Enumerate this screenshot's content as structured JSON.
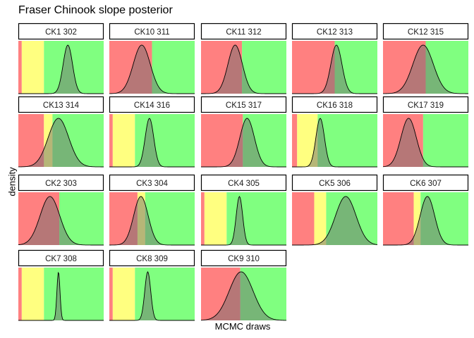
{
  "chart_data": {
    "type": "area",
    "title": "Fraser Chinook slope posterior",
    "xlabel": "MCMC draws",
    "ylabel": "density",
    "axis_ticks": "none",
    "colors": {
      "red": "#ff8080",
      "yellow": "#ffff80",
      "green": "#80ff80",
      "density_fill": "#6e6e6e",
      "strip_bg": "#ffffff",
      "strip_border": "#000000",
      "line": "#000000"
    },
    "panels": [
      {
        "label": "CK1 302",
        "zones": {
          "red_end": 0.04,
          "yellow_end": 0.3
        },
        "density": {
          "mean": 0.58,
          "sd": 0.055
        }
      },
      {
        "label": "CK10 311",
        "zones": {
          "red_end": 0.5,
          "yellow_end": 0.5
        },
        "density": {
          "mean": 0.38,
          "sd": 0.1
        }
      },
      {
        "label": "CK11 312",
        "zones": {
          "red_end": 0.48,
          "yellow_end": 0.48
        },
        "density": {
          "mean": 0.4,
          "sd": 0.085
        }
      },
      {
        "label": "CK12 313",
        "zones": {
          "red_end": 0.5,
          "yellow_end": 0.5
        },
        "density": {
          "mean": 0.52,
          "sd": 0.065
        }
      },
      {
        "label": "CK12 315",
        "zones": {
          "red_end": 0.5,
          "yellow_end": 0.5
        },
        "density": {
          "mean": 0.47,
          "sd": 0.12
        }
      },
      {
        "label": "CK13 314",
        "zones": {
          "red_end": 0.3,
          "yellow_end": 0.4
        },
        "density": {
          "mean": 0.47,
          "sd": 0.12
        }
      },
      {
        "label": "CK14 316",
        "zones": {
          "red_end": 0.04,
          "yellow_end": 0.3
        },
        "density": {
          "mean": 0.47,
          "sd": 0.05
        }
      },
      {
        "label": "CK15 317",
        "zones": {
          "red_end": 0.49,
          "yellow_end": 0.49
        },
        "density": {
          "mean": 0.54,
          "sd": 0.085
        }
      },
      {
        "label": "CK16 318",
        "zones": {
          "red_end": 0.06,
          "yellow_end": 0.3
        },
        "density": {
          "mean": 0.33,
          "sd": 0.05
        }
      },
      {
        "label": "CK17 319",
        "zones": {
          "red_end": 0.47,
          "yellow_end": 0.47
        },
        "density": {
          "mean": 0.3,
          "sd": 0.09
        }
      },
      {
        "label": "CK2 303",
        "zones": {
          "red_end": 0.48,
          "yellow_end": 0.48
        },
        "density": {
          "mean": 0.37,
          "sd": 0.115
        }
      },
      {
        "label": "CK3 304",
        "zones": {
          "red_end": 0.33,
          "yellow_end": 0.42
        },
        "density": {
          "mean": 0.37,
          "sd": 0.085
        }
      },
      {
        "label": "CK4 305",
        "zones": {
          "red_end": 0.04,
          "yellow_end": 0.3
        },
        "density": {
          "mean": 0.45,
          "sd": 0.038
        }
      },
      {
        "label": "CK5 306",
        "zones": {
          "red_end": 0.26,
          "yellow_end": 0.4
        },
        "density": {
          "mean": 0.63,
          "sd": 0.12
        }
      },
      {
        "label": "CK6 307",
        "zones": {
          "red_end": 0.36,
          "yellow_end": 0.44
        },
        "density": {
          "mean": 0.52,
          "sd": 0.085
        }
      },
      {
        "label": "CK7 308",
        "zones": {
          "red_end": 0.04,
          "yellow_end": 0.3
        },
        "density": {
          "mean": 0.47,
          "sd": 0.018
        }
      },
      {
        "label": "CK8 309",
        "zones": {
          "red_end": 0.04,
          "yellow_end": 0.3
        },
        "density": {
          "mean": 0.45,
          "sd": 0.035
        }
      },
      {
        "label": "CK9 310",
        "zones": {
          "red_end": 0.46,
          "yellow_end": 0.46
        },
        "density": {
          "mean": 0.47,
          "sd": 0.14
        }
      }
    ]
  }
}
